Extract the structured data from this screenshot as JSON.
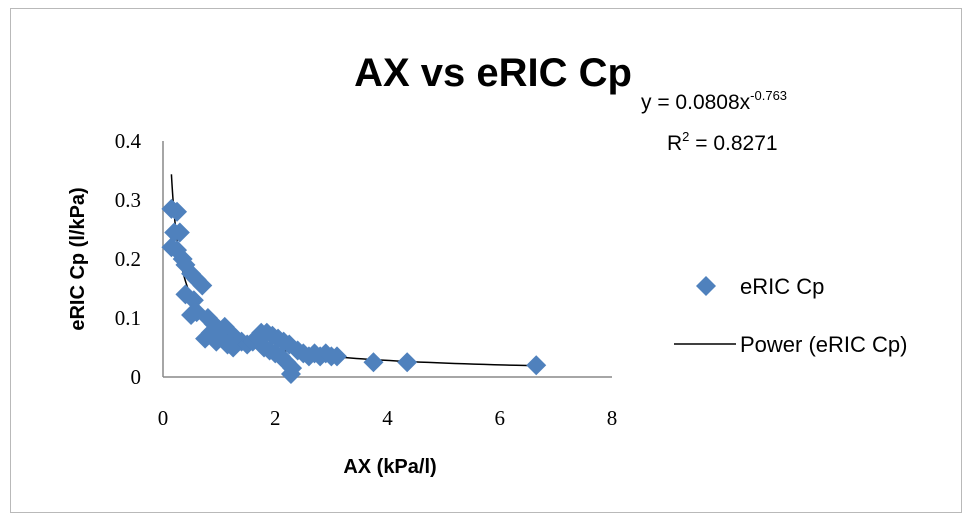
{
  "chart_data": {
    "type": "scatter",
    "title": "AX vs eRIC Cp",
    "xlabel": "AX (kPa/l)",
    "ylabel": "eRIC Cp (l/kPa)",
    "xlim": [
      0,
      8
    ],
    "ylim": [
      0,
      0.4
    ],
    "xticks": [
      "0",
      "2",
      "4",
      "6",
      "8"
    ],
    "yticks": [
      "0",
      "0.1",
      "0.2",
      "0.3",
      "0.4"
    ],
    "grid": false,
    "legend_position": "right",
    "series": [
      {
        "name": "eRIC Cp",
        "marker": "diamond",
        "color": "#4f81bd",
        "points": [
          [
            0.15,
            0.285
          ],
          [
            0.25,
            0.28
          ],
          [
            0.2,
            0.245
          ],
          [
            0.3,
            0.245
          ],
          [
            0.15,
            0.22
          ],
          [
            0.25,
            0.215
          ],
          [
            0.35,
            0.2
          ],
          [
            0.4,
            0.19
          ],
          [
            0.5,
            0.175
          ],
          [
            0.6,
            0.165
          ],
          [
            0.7,
            0.155
          ],
          [
            0.4,
            0.14
          ],
          [
            0.55,
            0.13
          ],
          [
            0.6,
            0.11
          ],
          [
            0.5,
            0.105
          ],
          [
            0.8,
            0.1
          ],
          [
            0.9,
            0.09
          ],
          [
            1.0,
            0.08
          ],
          [
            1.1,
            0.085
          ],
          [
            1.2,
            0.075
          ],
          [
            0.85,
            0.075
          ],
          [
            0.75,
            0.065
          ],
          [
            1.0,
            0.07
          ],
          [
            1.3,
            0.065
          ],
          [
            1.4,
            0.06
          ],
          [
            0.95,
            0.06
          ],
          [
            1.15,
            0.055
          ],
          [
            1.25,
            0.05
          ],
          [
            1.5,
            0.055
          ],
          [
            1.6,
            0.06
          ],
          [
            1.7,
            0.065
          ],
          [
            1.75,
            0.075
          ],
          [
            1.85,
            0.075
          ],
          [
            1.95,
            0.07
          ],
          [
            2.05,
            0.065
          ],
          [
            2.15,
            0.06
          ],
          [
            2.25,
            0.055
          ],
          [
            1.8,
            0.05
          ],
          [
            1.9,
            0.045
          ],
          [
            2.0,
            0.04
          ],
          [
            2.1,
            0.035
          ],
          [
            2.2,
            0.025
          ],
          [
            2.3,
            0.015
          ],
          [
            2.28,
            0.005
          ],
          [
            2.4,
            0.045
          ],
          [
            2.5,
            0.04
          ],
          [
            2.6,
            0.035
          ],
          [
            2.7,
            0.04
          ],
          [
            2.8,
            0.035
          ],
          [
            2.9,
            0.04
          ],
          [
            3.0,
            0.035
          ],
          [
            3.1,
            0.035
          ],
          [
            3.75,
            0.025
          ],
          [
            4.35,
            0.025
          ],
          [
            6.65,
            0.02
          ]
        ]
      },
      {
        "name": "Power (eRIC Cp)",
        "type": "line",
        "color": "#000000",
        "equation": "y = 0.0808x",
        "equation_exponent": "-0.763",
        "r_squared_label": "R",
        "r_squared_power": "2",
        "r_squared_value": " = 0.8271",
        "coefficient": 0.0808,
        "exponent": -0.763,
        "x_range": [
          0.15,
          6.7
        ]
      }
    ]
  }
}
